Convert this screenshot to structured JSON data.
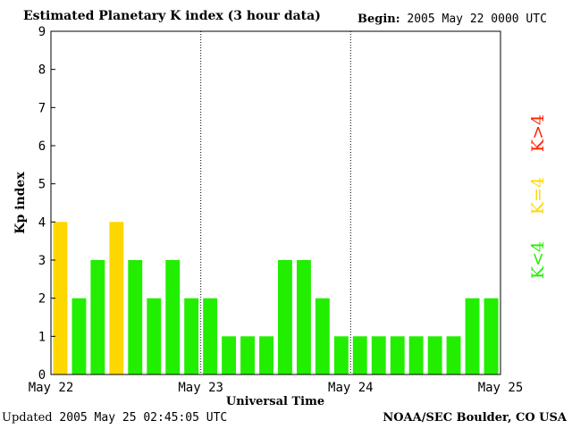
{
  "header": {
    "title": "Estimated Planetary K index (3 hour data)",
    "begin_label": "Begin:",
    "begin_value": "2005 May 22 0000 UTC"
  },
  "footer": {
    "updated_label": "Updated",
    "updated_value": "2005 May 25 02:45:05 UTC",
    "source": "NOAA/SEC Boulder, CO USA"
  },
  "legend": {
    "high": "K>4",
    "equal": "K=4",
    "low": "K<4"
  },
  "colors": {
    "low": "#22ee00",
    "equal": "#ffd700",
    "high": "#ff2200"
  },
  "chart_data": {
    "type": "bar",
    "ylabel": "Kp index",
    "xlabel": "Universal Time",
    "ylim": [
      0,
      9
    ],
    "yticks": [
      "0",
      "1",
      "2",
      "3",
      "4",
      "5",
      "6",
      "7",
      "8",
      "9"
    ],
    "xticks": [
      "May 22",
      "May 23",
      "May 24",
      "May 25"
    ],
    "values": [
      4,
      2,
      3,
      4,
      3,
      2,
      3,
      2,
      2,
      1,
      1,
      1,
      3,
      3,
      2,
      1,
      1,
      1,
      1,
      1,
      1,
      1,
      2,
      2
    ],
    "grid": "dotted vertical lines at day boundaries"
  }
}
